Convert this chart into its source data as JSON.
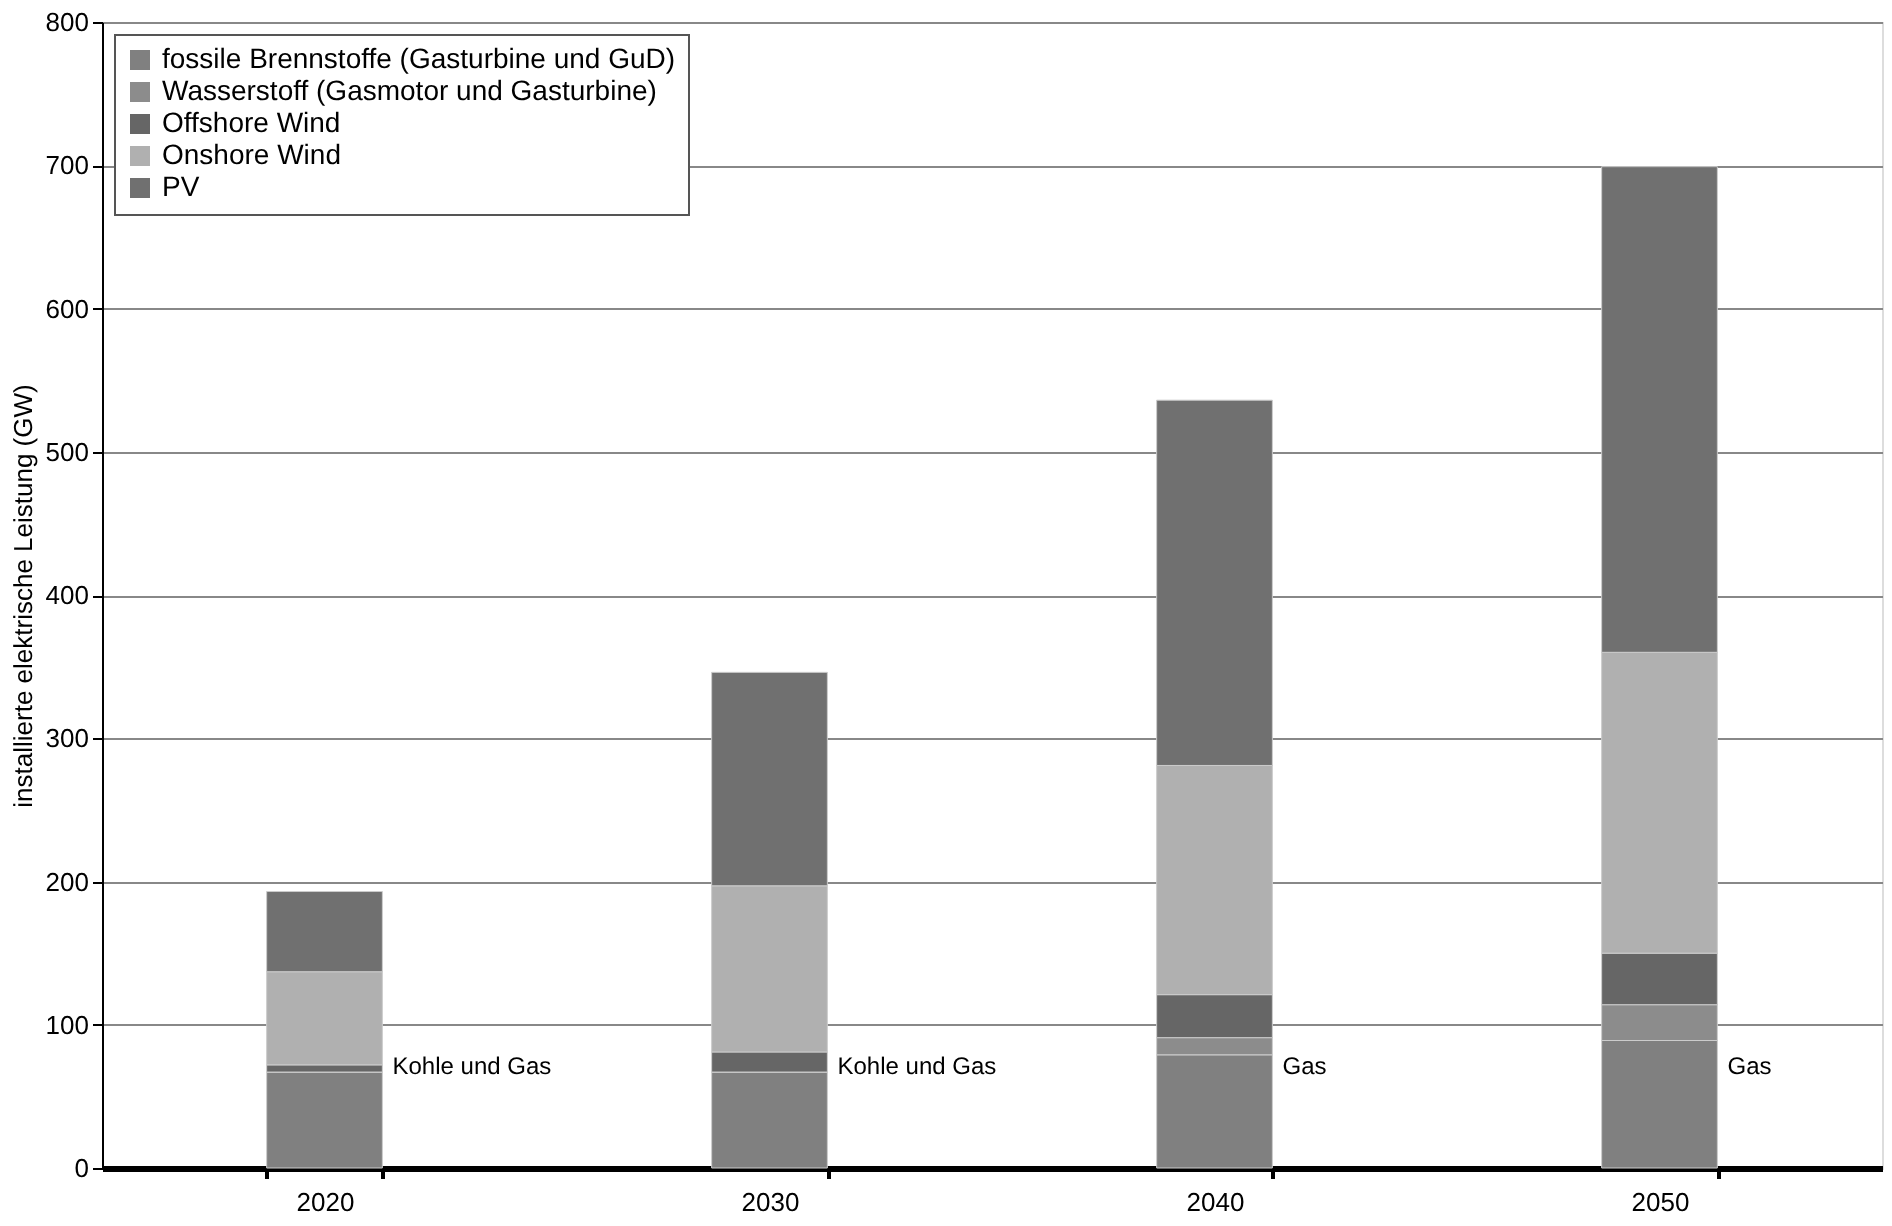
{
  "chart_data": {
    "type": "bar",
    "stacked": true,
    "ylabel": "installierte elektrische Leistung (GW)",
    "categories": [
      "2020",
      "2030",
      "2040",
      "2050"
    ],
    "series": [
      {
        "name": "fossile Brennstoffe (Gasturbine und GuD)",
        "color": "#808080",
        "values": [
          67,
          67,
          79,
          89
        ]
      },
      {
        "name": "Wasserstoff (Gasmotor und Gasturbine)",
        "color": "#8c8c8c",
        "values": [
          0,
          0,
          12,
          25
        ]
      },
      {
        "name": "Offshore Wind",
        "color": "#666666",
        "values": [
          5,
          14,
          30,
          36
        ]
      },
      {
        "name": "Onshore Wind",
        "color": "#b0b0b0",
        "values": [
          65,
          116,
          160,
          210
        ]
      },
      {
        "name": "PV",
        "color": "#707070",
        "values": [
          56,
          149,
          255,
          339
        ]
      }
    ],
    "ylim": [
      0,
      800
    ],
    "yticks": [
      0,
      100,
      200,
      300,
      400,
      500,
      600,
      700,
      800
    ],
    "grid": "y",
    "legend": "top left",
    "annotations": [
      "Kohle und Gas",
      "Kohle und Gas",
      "Gas",
      "Gas"
    ]
  }
}
